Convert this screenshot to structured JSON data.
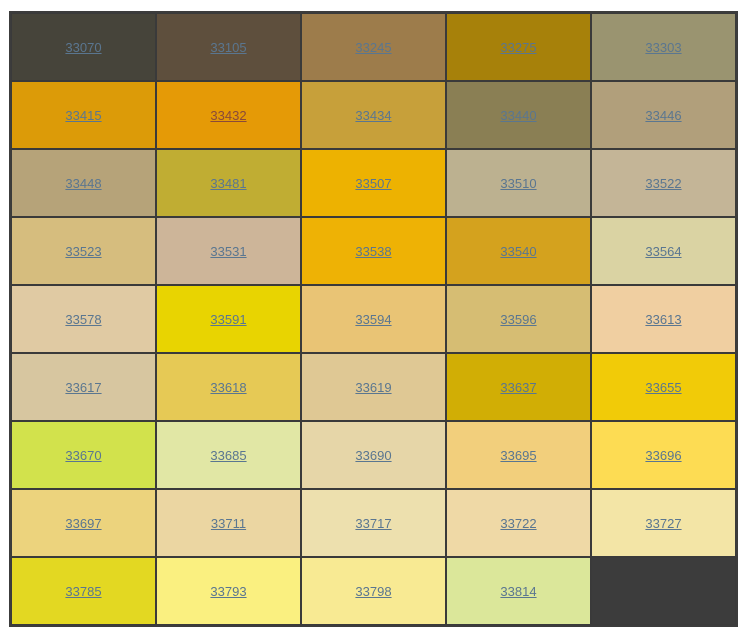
{
  "swatches": [
    {
      "code": "33070",
      "color": "#46443a"
    },
    {
      "code": "33105",
      "color": "#5e4f3d"
    },
    {
      "code": "33245",
      "color": "#9d7c4b"
    },
    {
      "code": "33275",
      "color": "#a7810a"
    },
    {
      "code": "33303",
      "color": "#9a9470"
    },
    {
      "code": "33415",
      "color": "#dc9b08"
    },
    {
      "code": "33432",
      "color": "#e59a06"
    },
    {
      "code": "33434",
      "color": "#c7a03a"
    },
    {
      "code": "33440",
      "color": "#8a7f54"
    },
    {
      "code": "33446",
      "color": "#b19f7b"
    },
    {
      "code": "33448",
      "color": "#b6a379"
    },
    {
      "code": "33481",
      "color": "#c0ad33"
    },
    {
      "code": "33507",
      "color": "#edb201"
    },
    {
      "code": "33510",
      "color": "#bcb190"
    },
    {
      "code": "33522",
      "color": "#c4b597"
    },
    {
      "code": "33523",
      "color": "#d6bd7e"
    },
    {
      "code": "33531",
      "color": "#cdb599"
    },
    {
      "code": "33538",
      "color": "#eeb205"
    },
    {
      "code": "33540",
      "color": "#d4a21e"
    },
    {
      "code": "33564",
      "color": "#dad3a3"
    },
    {
      "code": "33578",
      "color": "#e0caa3"
    },
    {
      "code": "33591",
      "color": "#e8d401"
    },
    {
      "code": "33594",
      "color": "#e9c475"
    },
    {
      "code": "33596",
      "color": "#d6bd73"
    },
    {
      "code": "33613",
      "color": "#f0cfa1"
    },
    {
      "code": "33617",
      "color": "#d7c6a0"
    },
    {
      "code": "33618",
      "color": "#e6c955"
    },
    {
      "code": "33619",
      "color": "#dfc894"
    },
    {
      "code": "33637",
      "color": "#d1ae05"
    },
    {
      "code": "33655",
      "color": "#f1cb08"
    },
    {
      "code": "33670",
      "color": "#d2e24c"
    },
    {
      "code": "33685",
      "color": "#e1e7a5"
    },
    {
      "code": "33690",
      "color": "#e6d6a8"
    },
    {
      "code": "33695",
      "color": "#f2cf7c"
    },
    {
      "code": "33696",
      "color": "#fddc53"
    },
    {
      "code": "33697",
      "color": "#ecd37d"
    },
    {
      "code": "33711",
      "color": "#ebd6a2"
    },
    {
      "code": "33717",
      "color": "#ede0ae"
    },
    {
      "code": "33722",
      "color": "#efd9a6"
    },
    {
      "code": "33727",
      "color": "#f3e5a6"
    },
    {
      "code": "33785",
      "color": "#e3d822"
    },
    {
      "code": "33793",
      "color": "#faf080"
    },
    {
      "code": "33798",
      "color": "#f8ea93"
    },
    {
      "code": "33814",
      "color": "#dbe79a"
    },
    {
      "code": "",
      "color": "#3c3c3c"
    }
  ]
}
